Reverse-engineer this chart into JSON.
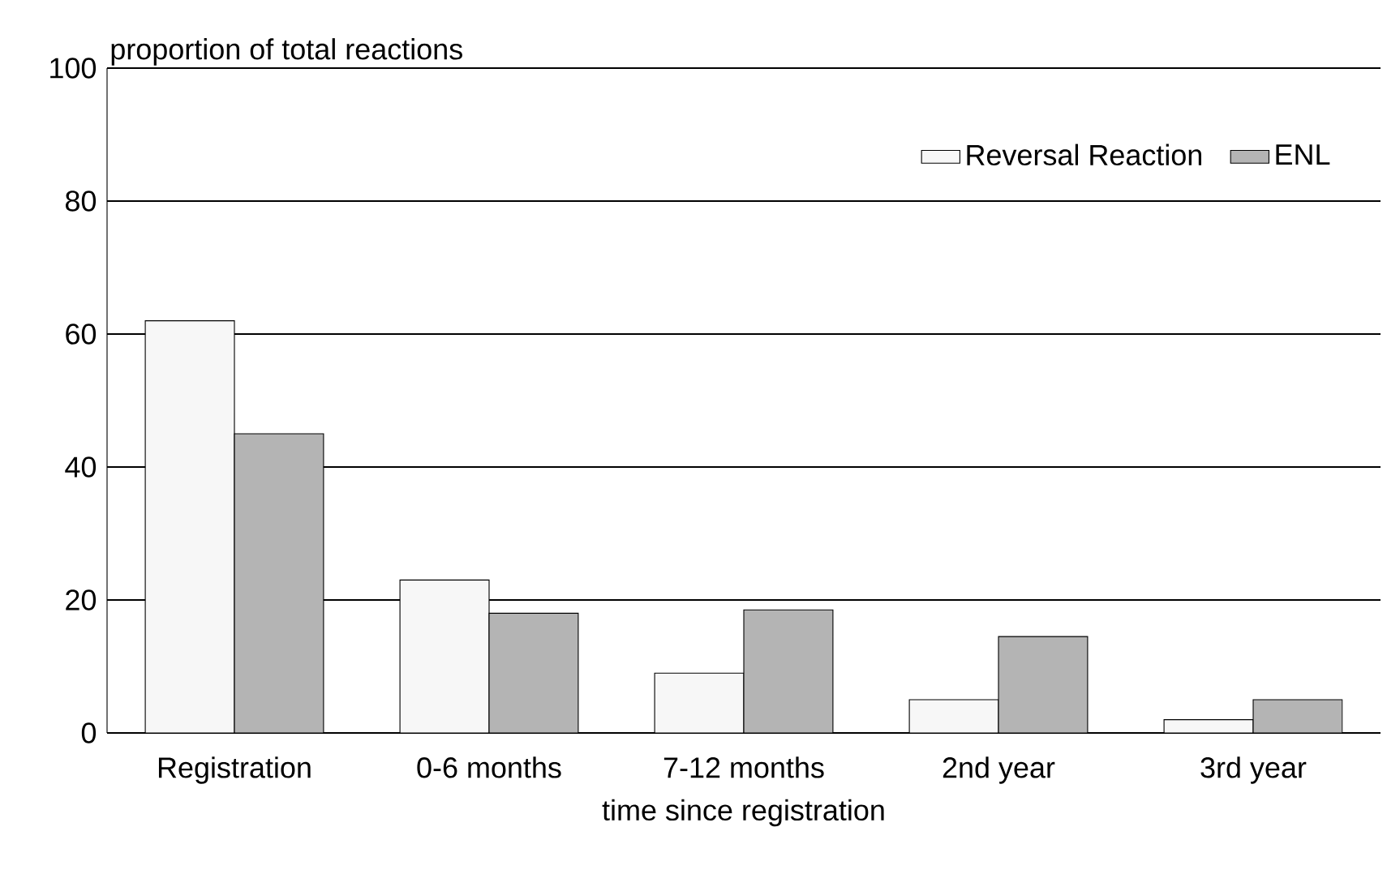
{
  "chart_data": {
    "type": "bar",
    "xlabel": "time since registration",
    "ylabel": "proportion of total reactions",
    "categories": [
      "Registration",
      "0-6 months",
      "7-12 months",
      "2nd year",
      "3rd year"
    ],
    "series": [
      {
        "name": "Reversal Reaction",
        "color": "#f7f7f7",
        "values": [
          62,
          23,
          9,
          5,
          2
        ]
      },
      {
        "name": "ENL",
        "color": "#b4b4b4",
        "values": [
          45,
          18,
          18.5,
          14.5,
          5
        ]
      }
    ],
    "ylim": [
      0,
      100
    ],
    "yticks": [
      0,
      20,
      40,
      60,
      80,
      100
    ],
    "grid": "y",
    "legend": "top right"
  }
}
